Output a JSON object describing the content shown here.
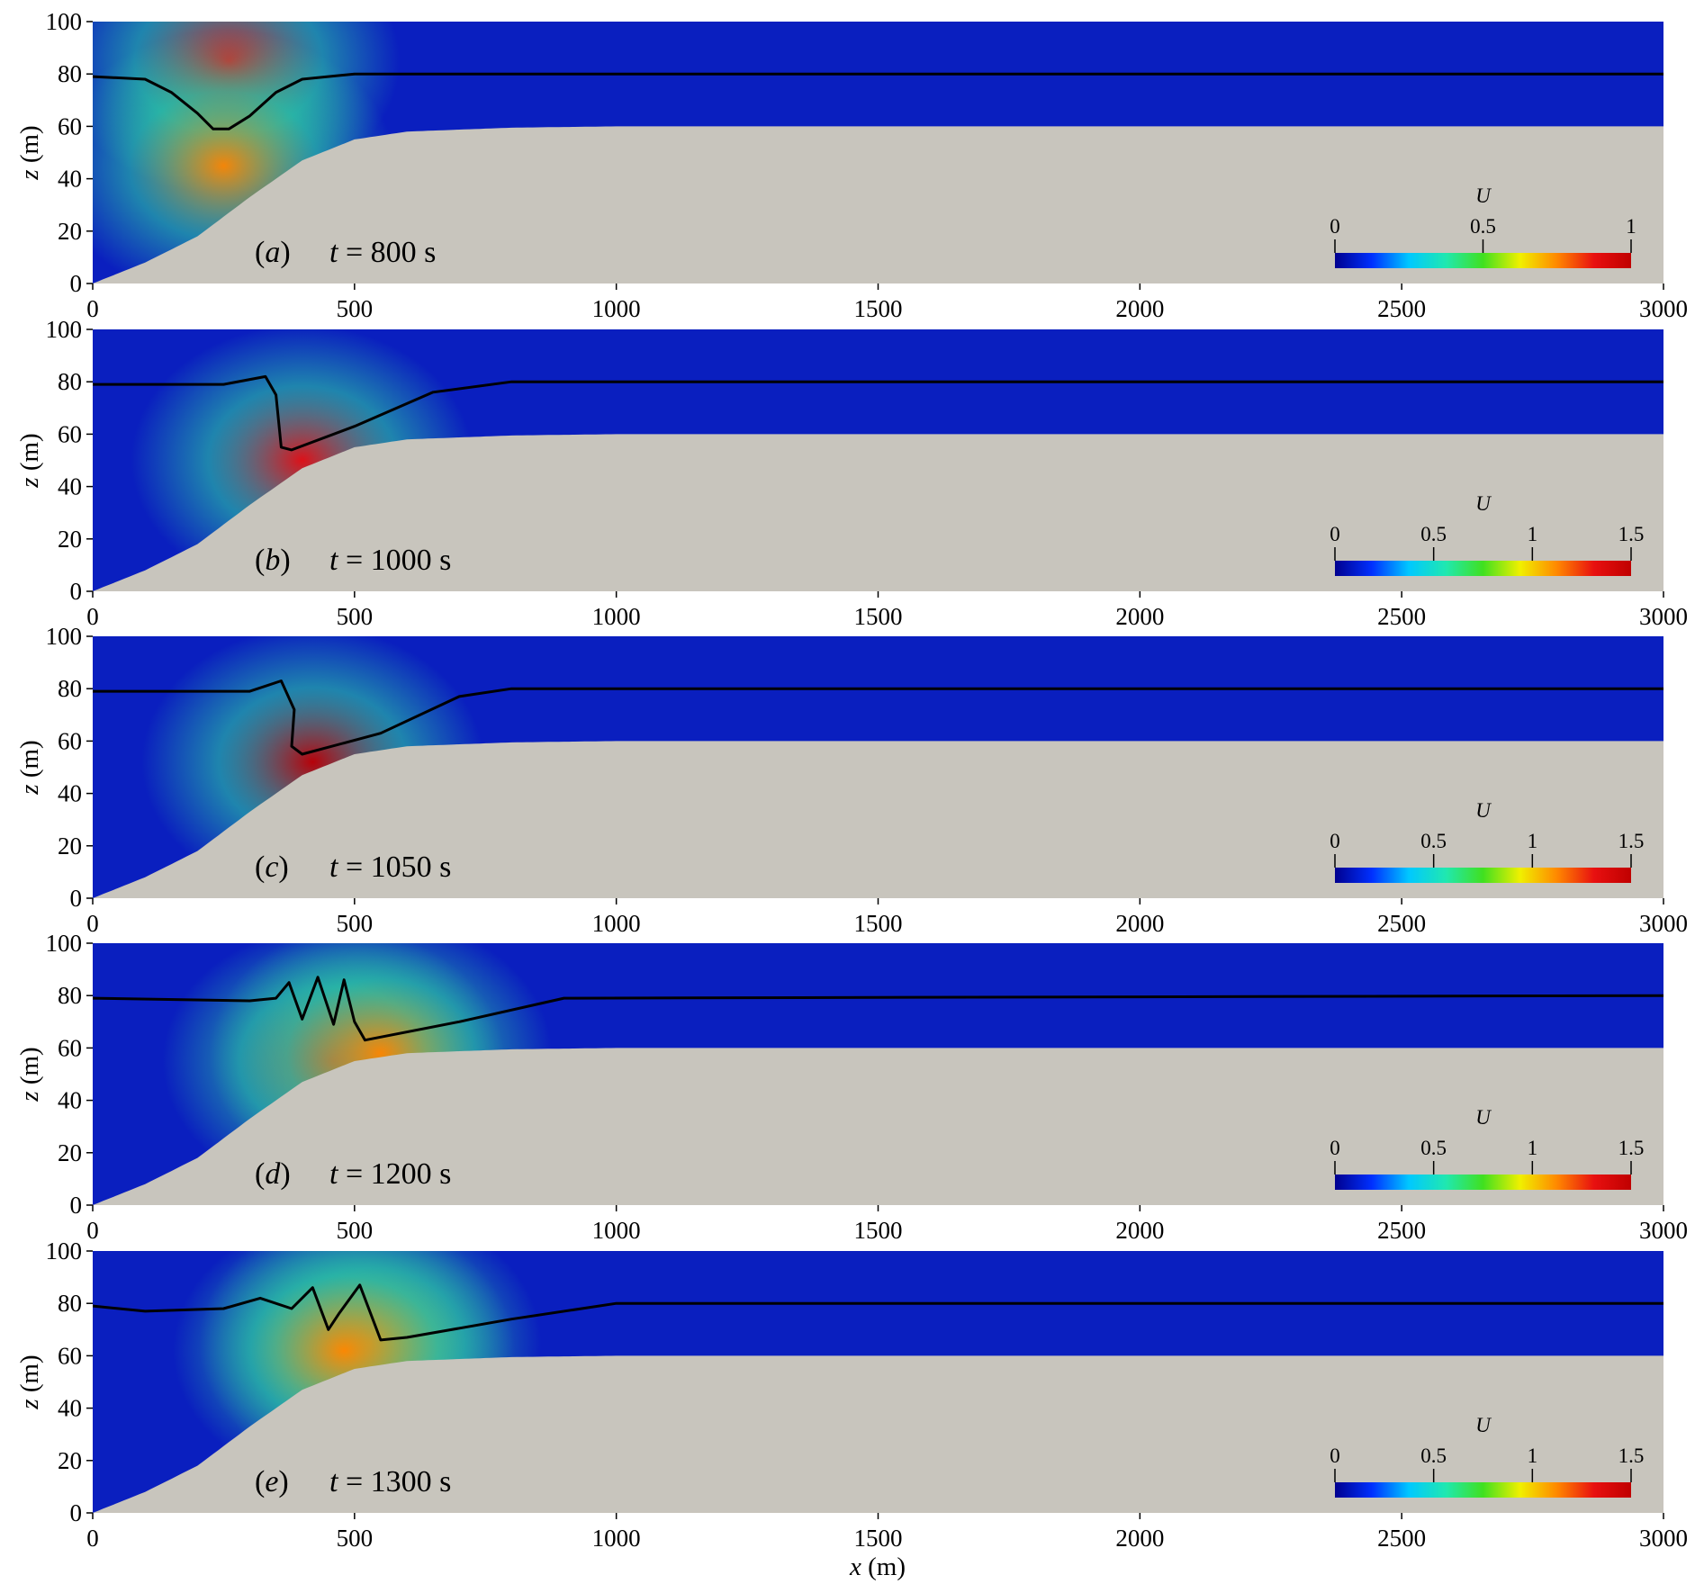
{
  "figure": {
    "xlabel_var": "x",
    "xlabel_unit": " (m)",
    "ylabel_var": "z",
    "ylabel_unit": " (m)"
  },
  "colors": {
    "bed": "#c8c5bd",
    "water_low": "#0a1fbf",
    "interface_line": "#000000",
    "colormap": [
      "#00008f",
      "#0030ff",
      "#00c8ff",
      "#20e8b0",
      "#40e020",
      "#f0f000",
      "#ff8800",
      "#e81010",
      "#c00000"
    ]
  },
  "chart_data": [
    {
      "type": "heatmap",
      "panel": "(a)",
      "panel_letter": "a",
      "time_label": "t = 800 s",
      "xlim": [
        0,
        3000
      ],
      "ylim": [
        0,
        100
      ],
      "xticks": [
        0,
        500,
        1000,
        1500,
        2000,
        2500,
        3000
      ],
      "yticks": [
        0,
        20,
        40,
        60,
        80,
        100
      ],
      "xlabel": "",
      "ylabel": "z (m)",
      "colorbar": {
        "title": "U",
        "min": 0,
        "max": 1,
        "ticks": [
          0,
          0.5,
          1
        ]
      },
      "bathymetry": {
        "x": [
          0,
          100,
          200,
          300,
          400,
          500,
          600,
          800,
          1000,
          3000
        ],
        "z": [
          0,
          8,
          18,
          33,
          47,
          55,
          58,
          59.5,
          60,
          60
        ]
      },
      "interface": {
        "x": [
          0,
          100,
          150,
          200,
          230,
          260,
          300,
          350,
          400,
          500,
          3000
        ],
        "z": [
          79,
          78,
          73,
          65,
          59,
          59,
          64,
          73,
          78,
          80,
          80
        ]
      },
      "hotspots": [
        {
          "x": 260,
          "z": 85,
          "value": 0.85
        },
        {
          "x": 250,
          "z": 45,
          "value": 0.75
        }
      ]
    },
    {
      "type": "heatmap",
      "panel": "(b)",
      "panel_letter": "b",
      "time_label": "t = 1000 s",
      "xlim": [
        0,
        3000
      ],
      "ylim": [
        0,
        100
      ],
      "xticks": [
        0,
        500,
        1000,
        1500,
        2000,
        2500,
        3000
      ],
      "yticks": [
        0,
        20,
        40,
        60,
        80,
        100
      ],
      "xlabel": "",
      "ylabel": "z (m)",
      "colorbar": {
        "title": "U",
        "min": 0,
        "max": 1.5,
        "ticks": [
          0,
          0.5,
          1,
          1.5
        ]
      },
      "bathymetry": {
        "x": [
          0,
          100,
          200,
          300,
          400,
          500,
          600,
          800,
          1000,
          3000
        ],
        "z": [
          0,
          8,
          18,
          33,
          47,
          55,
          58,
          59.5,
          60,
          60
        ]
      },
      "interface": {
        "x": [
          0,
          250,
          330,
          350,
          360,
          380,
          500,
          650,
          800,
          3000
        ],
        "z": [
          79,
          79,
          82,
          75,
          55,
          54,
          63,
          76,
          80,
          80
        ]
      },
      "hotspots": [
        {
          "x": 400,
          "z": 50,
          "value": 1.4
        }
      ]
    },
    {
      "type": "heatmap",
      "panel": "(c)",
      "panel_letter": "c",
      "time_label": "t = 1050 s",
      "xlim": [
        0,
        3000
      ],
      "ylim": [
        0,
        100
      ],
      "xticks": [
        0,
        500,
        1000,
        1500,
        2000,
        2500,
        3000
      ],
      "yticks": [
        0,
        20,
        40,
        60,
        80,
        100
      ],
      "xlabel": "",
      "ylabel": "z (m)",
      "colorbar": {
        "title": "U",
        "min": 0,
        "max": 1.5,
        "ticks": [
          0,
          0.5,
          1,
          1.5
        ]
      },
      "bathymetry": {
        "x": [
          0,
          100,
          200,
          300,
          400,
          500,
          600,
          800,
          1000,
          3000
        ],
        "z": [
          0,
          8,
          18,
          33,
          47,
          55,
          58,
          59.5,
          60,
          60
        ]
      },
      "interface": {
        "x": [
          0,
          300,
          360,
          385,
          380,
          400,
          550,
          700,
          800,
          3000
        ],
        "z": [
          79,
          79,
          83,
          72,
          58,
          55,
          63,
          77,
          80,
          80
        ]
      },
      "hotspots": [
        {
          "x": 420,
          "z": 52,
          "value": 1.45
        }
      ]
    },
    {
      "type": "heatmap",
      "panel": "(d)",
      "panel_letter": "d",
      "time_label": "t = 1200 s",
      "xlim": [
        0,
        3000
      ],
      "ylim": [
        0,
        100
      ],
      "xticks": [
        0,
        500,
        1000,
        1500,
        2000,
        2500,
        3000
      ],
      "yticks": [
        0,
        20,
        40,
        60,
        80,
        100
      ],
      "xlabel": "",
      "ylabel": "z (m)",
      "colorbar": {
        "title": "U",
        "min": 0,
        "max": 1.5,
        "ticks": [
          0,
          0.5,
          1,
          1.5
        ]
      },
      "bathymetry": {
        "x": [
          0,
          100,
          200,
          300,
          400,
          500,
          600,
          800,
          1000,
          3000
        ],
        "z": [
          0,
          8,
          18,
          33,
          47,
          55,
          58,
          59.5,
          60,
          60
        ]
      },
      "interface": {
        "x": [
          0,
          300,
          350,
          375,
          400,
          430,
          460,
          480,
          500,
          520,
          700,
          900,
          3000
        ],
        "z": [
          79,
          78,
          79,
          85,
          71,
          87,
          69,
          86,
          70,
          63,
          70,
          79,
          80
        ]
      },
      "hotspots": [
        {
          "x": 460,
          "z": 55,
          "value": 1.3
        },
        {
          "x": 550,
          "z": 58,
          "value": 1.2
        }
      ]
    },
    {
      "type": "heatmap",
      "panel": "(e)",
      "panel_letter": "e",
      "time_label": "t = 1300 s",
      "xlim": [
        0,
        3000
      ],
      "ylim": [
        0,
        100
      ],
      "xticks": [
        0,
        500,
        1000,
        1500,
        2000,
        2500,
        3000
      ],
      "yticks": [
        0,
        20,
        40,
        60,
        80,
        100
      ],
      "xlabel": "x (m)",
      "ylabel": "z (m)",
      "colorbar": {
        "title": "U",
        "min": 0,
        "max": 1.5,
        "ticks": [
          0,
          0.5,
          1,
          1.5
        ]
      },
      "bathymetry": {
        "x": [
          0,
          100,
          200,
          300,
          400,
          500,
          600,
          800,
          1000,
          3000
        ],
        "z": [
          0,
          8,
          18,
          33,
          47,
          55,
          58,
          59.5,
          60,
          60
        ]
      },
      "interface": {
        "x": [
          0,
          100,
          250,
          320,
          380,
          420,
          450,
          470,
          510,
          550,
          600,
          800,
          1000,
          3000
        ],
        "z": [
          79,
          77,
          78,
          82,
          78,
          86,
          70,
          76,
          87,
          66,
          67,
          74,
          80,
          80
        ]
      },
      "hotspots": [
        {
          "x": 530,
          "z": 65,
          "value": 1.2
        },
        {
          "x": 480,
          "z": 62,
          "value": 1.1
        }
      ]
    }
  ]
}
